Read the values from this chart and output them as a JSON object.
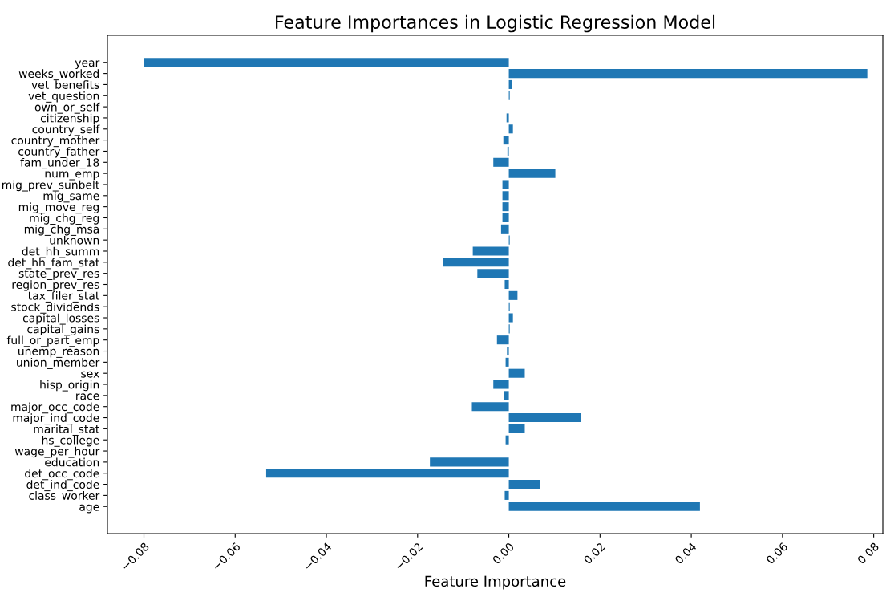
{
  "chart_data": {
    "type": "bar",
    "orientation": "horizontal",
    "title": "Feature Importances in Logistic Regression Model",
    "xlabel": "Feature Importance",
    "categories": [
      "year",
      "weeks_worked",
      "vet_benefits",
      "vet_question",
      "own_or_self",
      "citizenship",
      "country_self",
      "country_mother",
      "country_father",
      "fam_under_18",
      "num_emp",
      "mig_prev_sunbelt",
      "mig_same",
      "mig_move_reg",
      "mig_chg_reg",
      "mig_chg_msa",
      "unknown",
      "det_hh_summ",
      "det_hh_fam_stat",
      "state_prev_res",
      "region_prev_res",
      "tax_filer_stat",
      "stock_dividends",
      "capital_losses",
      "capital_gains",
      "full_or_part_emp",
      "unemp_reason",
      "union_member",
      "sex",
      "hisp_origin",
      "race",
      "major_occ_code",
      "major_ind_code",
      "marital_stat",
      "hs_college",
      "wage_per_hour",
      "education",
      "det_occ_code",
      "det_ind_code",
      "class_worker",
      "age"
    ],
    "values": [
      -0.08,
      0.0786,
      0.0007,
      0.0002,
      0,
      -0.0005,
      0.0009,
      -0.0012,
      -0.0003,
      -0.0034,
      0.0102,
      -0.0014,
      -0.0014,
      -0.0014,
      -0.0014,
      -0.0017,
      0.0002,
      -0.0079,
      -0.0145,
      -0.0069,
      -0.0009,
      0.0019,
      0.0002,
      0.0009,
      0.0002,
      -0.0026,
      -0.0004,
      -0.0007,
      0.0035,
      -0.0034,
      -0.0011,
      -0.0081,
      0.0159,
      0.0035,
      -0.0007,
      0,
      -0.0173,
      -0.0532,
      0.0068,
      -0.0009,
      0.0419
    ],
    "color": "#1f77b4",
    "xlim": [
      -0.088,
      0.082
    ],
    "xticks": [
      {
        "value": -0.08,
        "label": "−0.08"
      },
      {
        "value": -0.06,
        "label": "−0.06"
      },
      {
        "value": -0.04,
        "label": "−0.04"
      },
      {
        "value": -0.02,
        "label": "−0.02"
      },
      {
        "value": 0,
        "label": "0.00"
      },
      {
        "value": 0.02,
        "label": "0.02"
      },
      {
        "value": 0.04,
        "label": "0.04"
      },
      {
        "value": 0.06,
        "label": "0.06"
      },
      {
        "value": 0.08,
        "label": "0.08"
      }
    ],
    "grid": false
  }
}
